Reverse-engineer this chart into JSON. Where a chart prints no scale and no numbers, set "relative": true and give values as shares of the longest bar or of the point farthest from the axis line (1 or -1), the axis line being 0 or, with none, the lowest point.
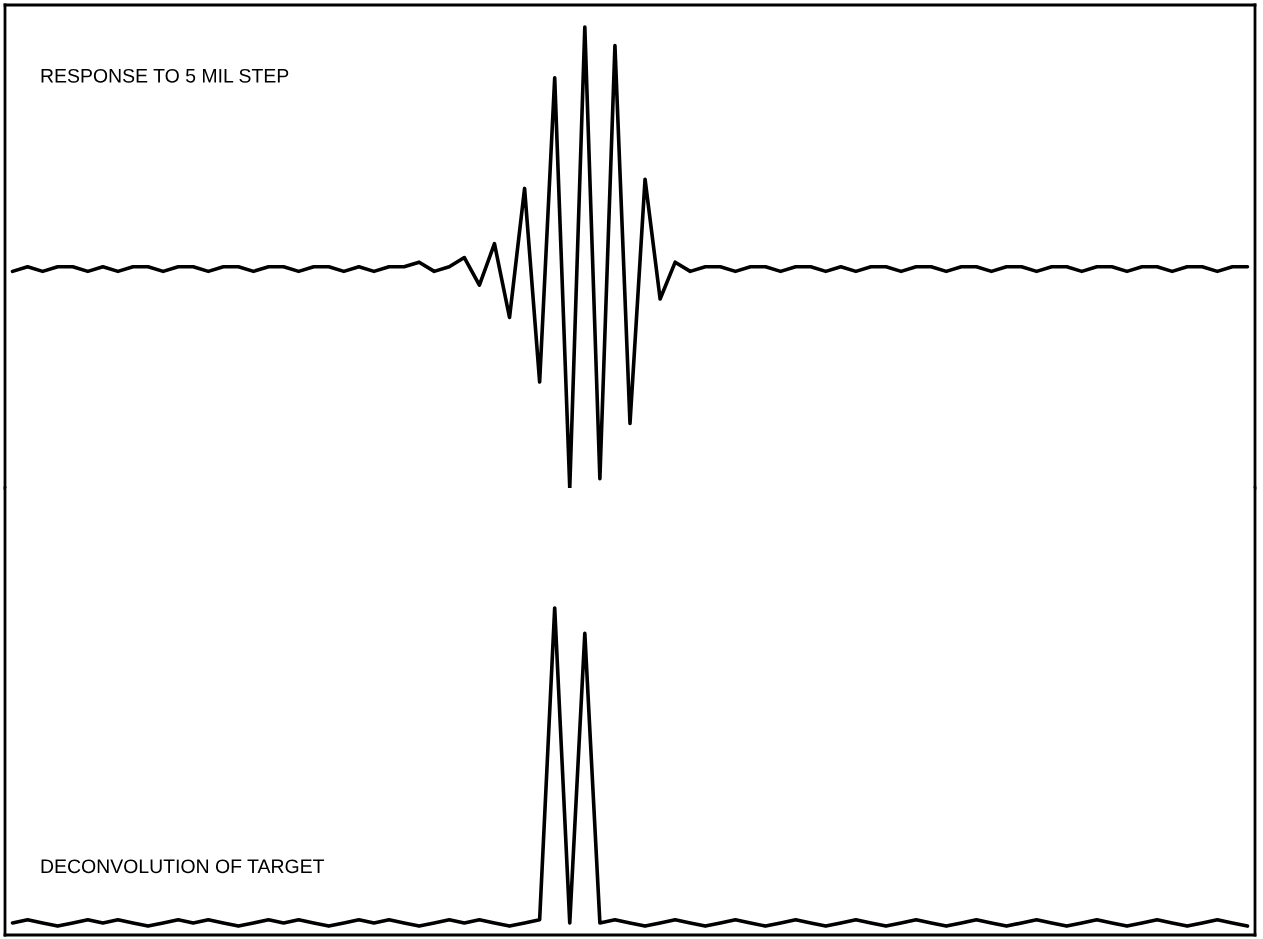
{
  "chart_data": [
    {
      "type": "line",
      "title": "RESPONSE TO 5 MIL STEP",
      "relative": true,
      "categories": [
        null,
        null,
        null,
        null,
        null,
        null,
        null,
        null,
        null,
        null,
        null,
        null,
        null,
        null,
        null,
        null,
        null,
        null,
        null,
        null,
        null,
        null,
        null,
        null,
        null,
        null,
        null,
        null,
        null,
        null,
        null,
        null,
        null,
        null,
        null,
        null,
        null,
        null,
        null,
        null,
        null,
        null,
        null,
        null,
        null,
        null,
        null,
        null,
        null,
        null,
        null,
        null,
        null,
        null,
        null,
        null,
        null,
        null,
        null,
        null,
        null,
        null,
        null,
        null,
        null,
        null,
        null,
        null,
        null,
        null,
        null,
        null,
        null,
        null,
        null,
        null,
        null,
        null,
        null,
        null,
        null,
        null,
        null
      ],
      "series": [
        {
          "color": "#000000",
          "values": [
            0.47,
            0.48,
            0.47,
            0.48,
            0.48,
            0.47,
            0.48,
            0.47,
            0.48,
            0.48,
            0.47,
            0.48,
            0.48,
            0.47,
            0.48,
            0.48,
            0.47,
            0.48,
            0.48,
            0.47,
            0.48,
            0.48,
            0.47,
            0.48,
            0.47,
            0.48,
            0.48,
            0.49,
            0.47,
            0.48,
            0.5,
            0.44,
            0.53,
            0.37,
            0.65,
            0.23,
            0.89,
            0.0,
            1.0,
            0.02,
            0.96,
            0.14,
            0.67,
            0.41,
            0.49,
            0.47,
            0.48,
            0.48,
            0.47,
            0.48,
            0.48,
            0.47,
            0.48,
            0.48,
            0.47,
            0.48,
            0.47,
            0.48,
            0.48,
            0.47,
            0.48,
            0.48,
            0.47,
            0.48,
            0.48,
            0.47,
            0.48,
            0.48,
            0.47,
            0.48,
            0.48,
            0.47,
            0.48,
            0.48,
            0.47,
            0.48,
            0.48,
            0.47,
            0.48,
            0.48,
            0.47,
            0.48,
            0.48
          ]
        }
      ]
    },
    {
      "type": "line",
      "title": "DECONVOLUTION OF TARGET",
      "relative": true,
      "categories": [
        null,
        null,
        null,
        null,
        null,
        null,
        null,
        null,
        null,
        null,
        null,
        null,
        null,
        null,
        null,
        null,
        null,
        null,
        null,
        null,
        null,
        null,
        null,
        null,
        null,
        null,
        null,
        null,
        null,
        null,
        null,
        null,
        null,
        null,
        null,
        null,
        null,
        null,
        null,
        null,
        null,
        null,
        null,
        null,
        null,
        null,
        null,
        null,
        null,
        null,
        null,
        null,
        null,
        null,
        null,
        null,
        null,
        null,
        null,
        null,
        null,
        null,
        null,
        null,
        null,
        null,
        null,
        null,
        null,
        null,
        null,
        null,
        null,
        null,
        null,
        null,
        null,
        null,
        null,
        null,
        null,
        null,
        null
      ],
      "series": [
        {
          "color": "#000000",
          "values": [
            0.01,
            0.02,
            0.01,
            0.0,
            0.01,
            0.02,
            0.01,
            0.02,
            0.01,
            0.0,
            0.01,
            0.02,
            0.01,
            0.02,
            0.01,
            0.0,
            0.01,
            0.02,
            0.01,
            0.02,
            0.01,
            0.0,
            0.01,
            0.02,
            0.01,
            0.02,
            0.01,
            0.0,
            0.01,
            0.02,
            0.01,
            0.02,
            0.01,
            0.0,
            0.01,
            0.02,
            1.0,
            0.01,
            0.92,
            0.01,
            0.02,
            0.01,
            0.0,
            0.01,
            0.02,
            0.01,
            0.0,
            0.01,
            0.02,
            0.01,
            0.0,
            0.01,
            0.02,
            0.01,
            0.0,
            0.01,
            0.02,
            0.01,
            0.0,
            0.01,
            0.02,
            0.01,
            0.0,
            0.01,
            0.02,
            0.01,
            0.0,
            0.01,
            0.02,
            0.01,
            0.0,
            0.01,
            0.02,
            0.01,
            0.0,
            0.01,
            0.02,
            0.01,
            0.0,
            0.01,
            0.02,
            0.01,
            0.0
          ]
        }
      ]
    }
  ]
}
